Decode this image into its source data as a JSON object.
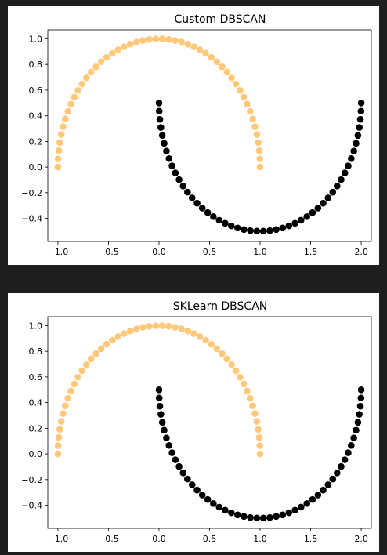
{
  "chart_data": [
    {
      "type": "scatter",
      "title": "Custom DBSCAN",
      "xlabel": "",
      "ylabel": "",
      "xlim": [
        -1.1,
        2.1
      ],
      "ylim": [
        -0.58,
        1.07
      ],
      "xticks": [
        -1.0,
        -0.5,
        0.0,
        0.5,
        1.0,
        1.5,
        2.0
      ],
      "xtick_labels": [
        "−1.0",
        "−0.5",
        "0.0",
        "0.5",
        "1.0",
        "1.5",
        "2.0"
      ],
      "yticks": [
        -0.4,
        -0.2,
        0.0,
        0.2,
        0.4,
        0.6,
        0.8,
        1.0
      ],
      "ytick_labels": [
        "−0.4",
        "−0.2",
        "0.0",
        "0.2",
        "0.4",
        "0.6",
        "0.8",
        "1.0"
      ],
      "grid": false,
      "series": [
        {
          "color": "#ffc87a",
          "shape": "upper-moon",
          "n_points": 50,
          "x_range": [
            -1.0,
            1.0
          ],
          "y_range": [
            0.0,
            1.0
          ]
        },
        {
          "color": "#000000",
          "shape": "lower-moon",
          "n_points": 50,
          "x_range": [
            0.0,
            2.0
          ],
          "y_range": [
            -0.5,
            0.5
          ]
        }
      ]
    },
    {
      "type": "scatter",
      "title": "SKLearn DBSCAN",
      "xlabel": "",
      "ylabel": "",
      "xlim": [
        -1.1,
        2.1
      ],
      "ylim": [
        -0.58,
        1.07
      ],
      "xticks": [
        -1.0,
        -0.5,
        0.0,
        0.5,
        1.0,
        1.5,
        2.0
      ],
      "xtick_labels": [
        "−1.0",
        "−0.5",
        "0.0",
        "0.5",
        "1.0",
        "1.5",
        "2.0"
      ],
      "yticks": [
        -0.4,
        -0.2,
        0.0,
        0.2,
        0.4,
        0.6,
        0.8,
        1.0
      ],
      "ytick_labels": [
        "−0.4",
        "−0.2",
        "0.0",
        "0.2",
        "0.4",
        "0.6",
        "0.8",
        "1.0"
      ],
      "grid": false,
      "series": [
        {
          "color": "#ffc87a",
          "shape": "upper-moon",
          "n_points": 50,
          "x_range": [
            -1.0,
            1.0
          ],
          "y_range": [
            0.0,
            1.0
          ]
        },
        {
          "color": "#000000",
          "shape": "lower-moon",
          "n_points": 50,
          "x_range": [
            0.0,
            2.0
          ],
          "y_range": [
            -0.5,
            0.5
          ]
        }
      ]
    }
  ]
}
